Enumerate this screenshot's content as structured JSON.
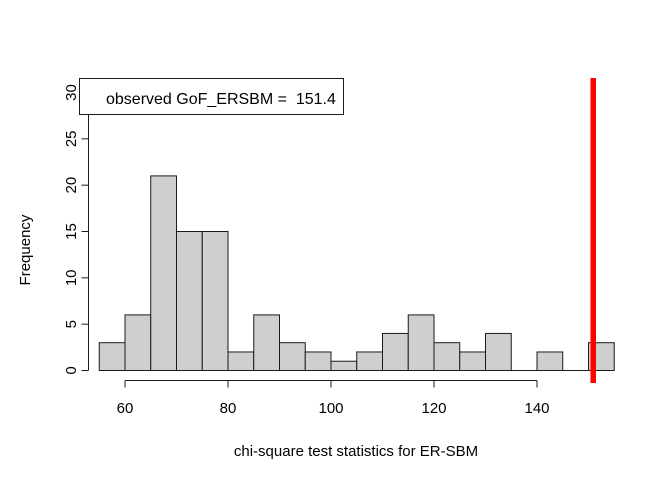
{
  "window": {
    "background": "#ffffff"
  },
  "legend": {
    "label": "observed GoF_ERSBM =  151.4",
    "position": "topleft",
    "box_fill": "#ffffff",
    "box_border": "#1a1a1a"
  },
  "chart_data": {
    "type": "bar",
    "subtype": "histogram",
    "title": "",
    "xlabel": "chi-square test statistics for ER-SBM",
    "ylabel": "Frequency",
    "bin_start": 55,
    "bin_width": 5,
    "bin_edges": [
      55,
      60,
      65,
      70,
      75,
      80,
      85,
      90,
      95,
      100,
      105,
      110,
      115,
      120,
      125,
      130,
      135,
      140,
      145,
      150,
      155
    ],
    "values": [
      3,
      6,
      21,
      15,
      15,
      2,
      6,
      3,
      2,
      1,
      2,
      4,
      6,
      3,
      2,
      4,
      0,
      2,
      0,
      3
    ],
    "x_ticks": [
      60,
      80,
      100,
      120,
      140
    ],
    "y_ticks": [
      0,
      5,
      10,
      15,
      20,
      25,
      30
    ],
    "xlim": [
      55,
      155
    ],
    "ylim": [
      0,
      30
    ],
    "grid": false,
    "legend_position": "topleft",
    "bar_fill": "#cfcfcf",
    "bar_border": "#1a1a1a",
    "axis_color": "#1a1a1a",
    "observed_line": {
      "value": 151.4,
      "color": "#ff0000"
    }
  }
}
